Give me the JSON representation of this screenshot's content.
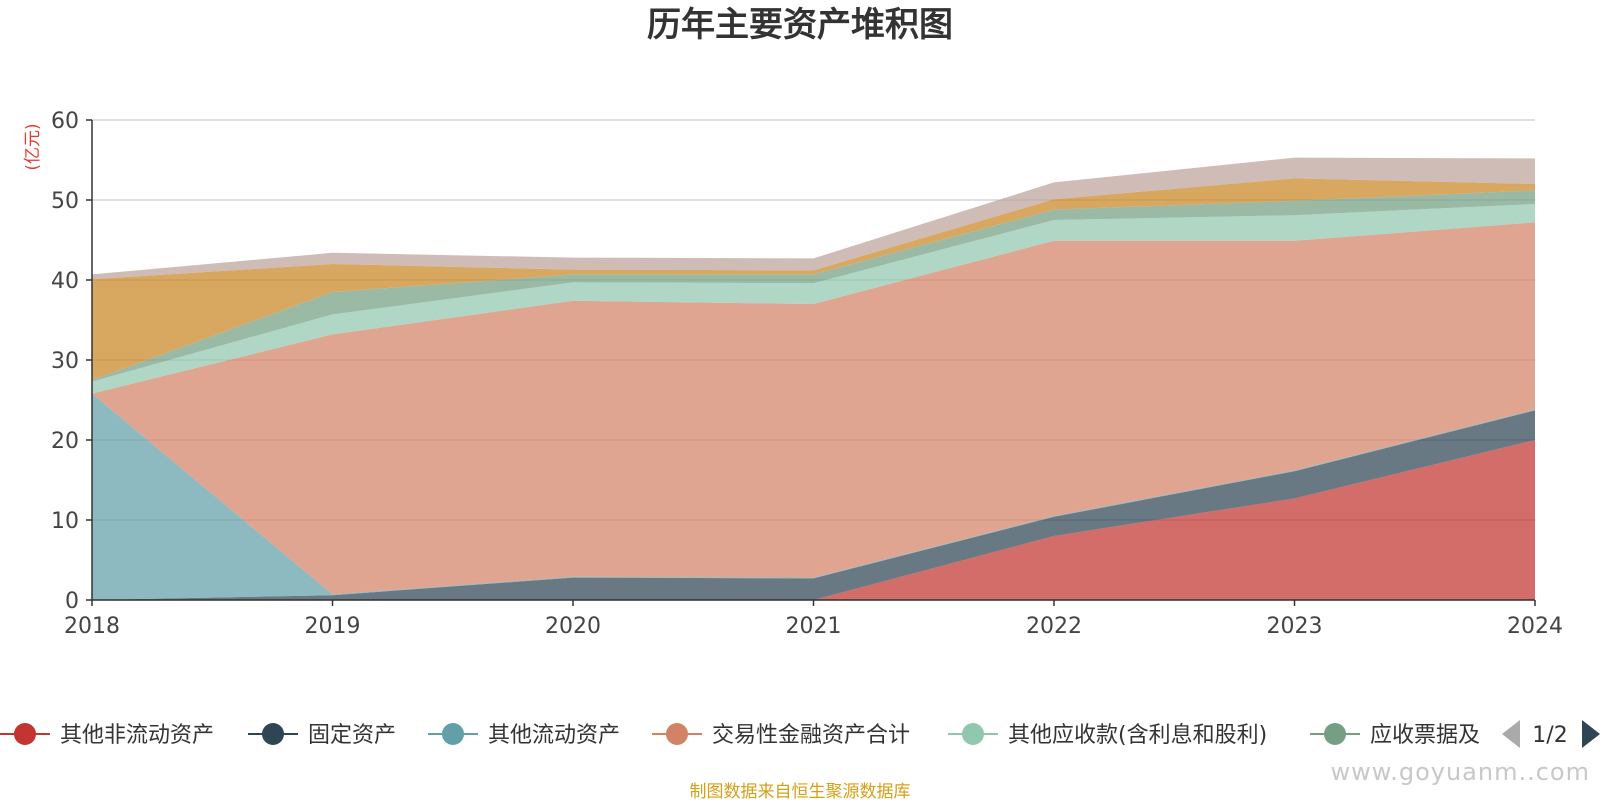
{
  "chart_data": {
    "type": "area",
    "stacked": true,
    "title": "历年主要资产堆积图",
    "ylabel": "(亿元)",
    "xlabel": "",
    "x": [
      "2018",
      "2019",
      "2020",
      "2021",
      "2022",
      "2023",
      "2024"
    ],
    "ylim": [
      0,
      60
    ],
    "yticks": [
      "0",
      "10",
      "20",
      "30",
      "40",
      "50",
      "60"
    ],
    "grid": true,
    "legend_position": "bottom",
    "series": [
      {
        "name": "其他非流动资产",
        "color": "#c23531",
        "values": [
          0,
          0,
          0,
          0,
          8.0,
          12.7,
          20.0
        ]
      },
      {
        "name": "固定资产",
        "color": "#2f4554",
        "values": [
          0,
          0.6,
          2.8,
          2.7,
          2.4,
          3.4,
          3.7
        ]
      },
      {
        "name": "其他流动资产",
        "color": "#61a0a8",
        "values": [
          25.8,
          0.1,
          0.1,
          0.1,
          0.1,
          0.1,
          0.1
        ]
      },
      {
        "name": "交易性金融资产合计",
        "color": "#d48265",
        "values": [
          0,
          32.5,
          34.5,
          34.2,
          34.4,
          28.7,
          23.4
        ]
      },
      {
        "name": "其他应收款(含利息和股利)",
        "color": "#91c7ae",
        "values": [
          1.5,
          2.5,
          2.3,
          2.6,
          2.6,
          3.2,
          2.3
        ]
      },
      {
        "name": "应收票据及应收账款",
        "color": "#749f83",
        "values": [
          0.2,
          2.8,
          1.0,
          1.1,
          1.3,
          1.8,
          1.7
        ]
      },
      {
        "name": "",
        "color": "#ca8622",
        "values": [
          12.6,
          3.5,
          0.6,
          0.5,
          1.3,
          2.8,
          0.8
        ]
      },
      {
        "name": "",
        "color": "#bda29a",
        "values": [
          0.6,
          1.4,
          1.5,
          1.5,
          2.1,
          2.6,
          3.2
        ]
      }
    ]
  },
  "legend": {
    "items": [
      {
        "label": "其他非流动资产",
        "color": "#c23531"
      },
      {
        "label": "固定资产",
        "color": "#2f4554"
      },
      {
        "label": "其他流动资产",
        "color": "#61a0a8"
      },
      {
        "label": "交易性金融资产合计",
        "color": "#d48265"
      },
      {
        "label": "其他应收款(含利息和股利)",
        "color": "#91c7ae"
      },
      {
        "label": "应收票据及",
        "color": "#749f83"
      }
    ],
    "page_indicator": "1/2"
  },
  "footer": "制图数据来自恒生聚源数据库",
  "watermark": "www.gоyuаnm..cоm"
}
